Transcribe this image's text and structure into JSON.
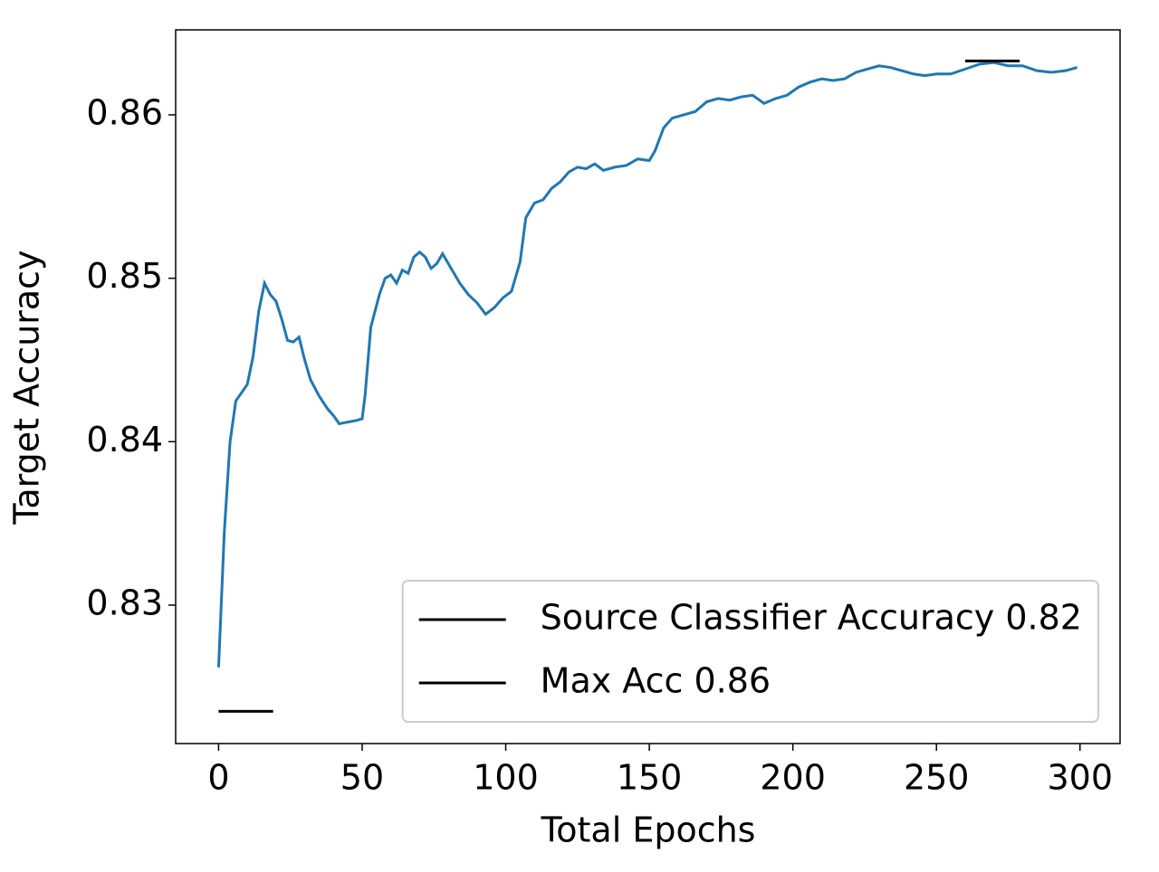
{
  "chart_data": {
    "type": "line",
    "xlabel": "Total Epochs",
    "ylabel": "Target Accuracy",
    "xlim": [
      -14.95,
      313.95
    ],
    "xticks": [
      0,
      50,
      100,
      150,
      200,
      250,
      300
    ],
    "ylim": [
      0.82153,
      0.8652
    ],
    "yticks": [
      0.83,
      0.84,
      0.85,
      0.86
    ],
    "legend": "lower right",
    "series": [
      {
        "color": "#1f77b4",
        "x": [
          0,
          2,
          4,
          6,
          8,
          10,
          12,
          14,
          16,
          18,
          20,
          22,
          24,
          26,
          28,
          30,
          32,
          35,
          38,
          40,
          42,
          45,
          48,
          50,
          51,
          53,
          56,
          58,
          60,
          62,
          64,
          66,
          68,
          70,
          72,
          74,
          76,
          78,
          80,
          84,
          87,
          90,
          93,
          96,
          99,
          102,
          105,
          107,
          110,
          113,
          116,
          119,
          122,
          125,
          128,
          131,
          134,
          138,
          142,
          146,
          150,
          152,
          155,
          158,
          162,
          166,
          170,
          174,
          178,
          182,
          186,
          190,
          194,
          198,
          202,
          206,
          210,
          214,
          218,
          222,
          226,
          230,
          234,
          238,
          242,
          246,
          250,
          255,
          260,
          265,
          270,
          275,
          280,
          285,
          290,
          295,
          299
        ],
        "values": [
          0.8262,
          0.8345,
          0.84,
          0.8425,
          0.843,
          0.8435,
          0.8452,
          0.848,
          0.8497,
          0.849,
          0.8486,
          0.8475,
          0.8462,
          0.8461,
          0.8464,
          0.845,
          0.8438,
          0.8428,
          0.842,
          0.8416,
          0.8411,
          0.8412,
          0.8413,
          0.8414,
          0.8428,
          0.847,
          0.849,
          0.85,
          0.8502,
          0.8497,
          0.8505,
          0.8503,
          0.8513,
          0.8516,
          0.8513,
          0.8506,
          0.8509,
          0.8515,
          0.8509,
          0.8497,
          0.849,
          0.8485,
          0.8478,
          0.8482,
          0.8488,
          0.8492,
          0.851,
          0.8537,
          0.8546,
          0.8548,
          0.8555,
          0.8559,
          0.8565,
          0.8568,
          0.8567,
          0.857,
          0.8566,
          0.8568,
          0.8569,
          0.8573,
          0.8572,
          0.8578,
          0.8592,
          0.8598,
          0.86,
          0.8602,
          0.8608,
          0.861,
          0.8609,
          0.8611,
          0.8612,
          0.8607,
          0.861,
          0.8612,
          0.8617,
          0.862,
          0.8622,
          0.8621,
          0.8622,
          0.8626,
          0.8628,
          0.863,
          0.8629,
          0.8627,
          0.8625,
          0.8624,
          0.8625,
          0.8625,
          0.8628,
          0.8631,
          0.8632,
          0.863,
          0.863,
          0.8627,
          0.8626,
          0.8627,
          0.8629
        ]
      },
      {
        "name": "Source Classifier Accuracy 0.82",
        "color": "#000000",
        "x": [
          0,
          19
        ],
        "values": [
          0.8235,
          0.8235
        ]
      },
      {
        "name": "Max Acc 0.86",
        "color": "#000000",
        "x": [
          260,
          279
        ],
        "values": [
          0.8633,
          0.8633
        ]
      }
    ]
  }
}
